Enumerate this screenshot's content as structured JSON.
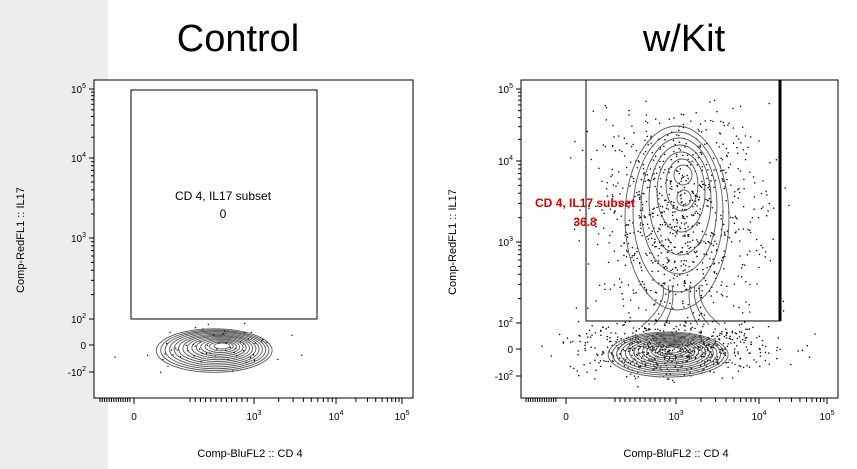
{
  "panels": {
    "left_title": "Control",
    "right_title": "w/Kit"
  },
  "chart_data": [
    {
      "type": "scatter",
      "title": "Control",
      "xlabel": "Comp-BluFL2 :: CD 4",
      "ylabel": "Comp-RedFL1 :: IL17",
      "x_scale": "biexponential",
      "y_scale": "biexponential",
      "x_ticks": [
        "0",
        "10^3",
        "10^4",
        "10^5"
      ],
      "y_ticks": [
        "10^5",
        "10^4",
        "10^3",
        "10^2",
        "0",
        "-10^2"
      ],
      "gate": {
        "name": "CD 4, IL17 subset",
        "value": "0",
        "label_color": "#000000"
      },
      "populations": [
        {
          "name": "",
          "x_center": 500,
          "y_center": 0
        }
      ]
    },
    {
      "type": "scatter",
      "title": "w/Kit",
      "xlabel": "Comp-BluFL2 :: CD 4",
      "ylabel": "Comp-RedFL1 :: IL17",
      "x_scale": "biexponential",
      "y_scale": "biexponential",
      "x_ticks": [
        "0",
        "10^3",
        "10^4",
        "10^5"
      ],
      "y_ticks": [
        "10^5",
        "10^4",
        "10^3",
        "10^2",
        "0",
        "-10^2"
      ],
      "gate": {
        "name": "CD 4, IL17 subset",
        "value": "36.8",
        "label_color": "#d40000"
      },
      "populations": [
        {
          "name": "",
          "x_center": 900,
          "y_center": 0
        },
        {
          "name": "",
          "x_center": 1000,
          "y_center": 10000
        }
      ]
    }
  ],
  "labels": {
    "left_gate_name": "CD 4, IL17 subset",
    "left_gate_value": "0",
    "right_gate_name": "CD 4, IL17 subset",
    "right_gate_value": "36.8"
  }
}
